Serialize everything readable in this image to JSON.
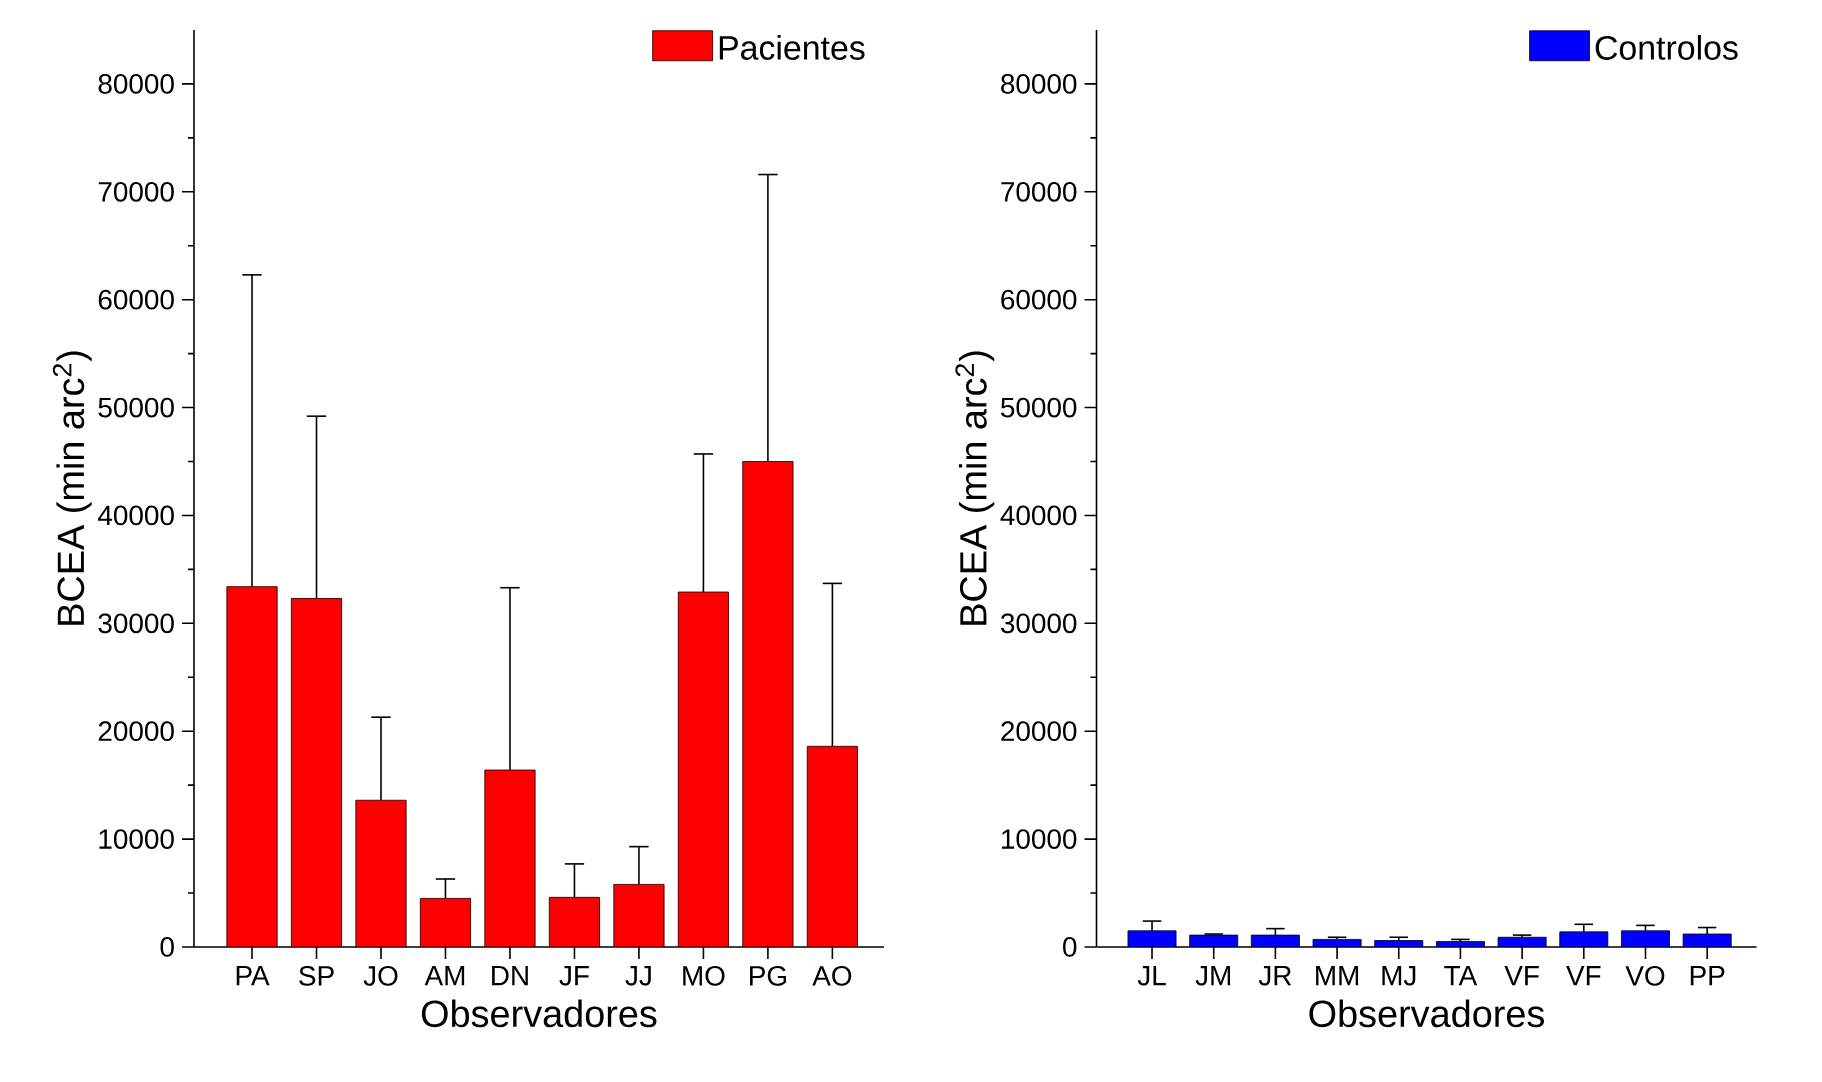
{
  "chart_data": [
    {
      "type": "bar",
      "xlabel": "Observadores",
      "ylabel": "BCEA (min arc$^{2}$)",
      "categories": [
        "PA",
        "SP",
        "JO",
        "AM",
        "DN",
        "JF",
        "JJ",
        "MO",
        "PG",
        "AO"
      ],
      "ylim": [
        0,
        85000
      ],
      "yticks": [
        0,
        10000,
        20000,
        30000,
        40000,
        50000,
        60000,
        70000,
        80000
      ],
      "legend": "top right",
      "series": [
        {
          "name": "Pacientes",
          "color": "#ff0000",
          "values": [
            33400,
            32300,
            13600,
            4500,
            16400,
            4600,
            5800,
            32900,
            45000,
            18600
          ],
          "errors": [
            [
              33400,
              62300
            ],
            [
              32300,
              49200
            ],
            [
              13600,
              21300
            ],
            [
              4500,
              6300
            ],
            [
              16400,
              33300
            ],
            [
              4600,
              7700
            ],
            [
              5800,
              9300
            ],
            [
              32900,
              45700
            ],
            [
              45000,
              71600
            ],
            [
              18600,
              33700
            ]
          ]
        }
      ]
    },
    {
      "type": "bar",
      "xlabel": "Observadores",
      "ylabel": "BCEA (min arc$^{2}$)",
      "categories": [
        "JL",
        "JM",
        "JR",
        "MM",
        "MJ",
        "TA",
        "VF",
        "VF",
        "VO",
        "PP"
      ],
      "ylim": [
        0,
        85000
      ],
      "yticks": [
        0,
        10000,
        20000,
        30000,
        40000,
        50000,
        60000,
        70000,
        80000
      ],
      "legend": "top right",
      "series": [
        {
          "name": "Controlos",
          "color": "#0000ff",
          "values": [
            1500,
            1100,
            1100,
            700,
            600,
            500,
            900,
            1400,
            1500,
            1200
          ],
          "errors": [
            [
              1500,
              2400
            ],
            [
              1100,
              1200
            ],
            [
              1100,
              1700
            ],
            [
              700,
              900
            ],
            [
              600,
              900
            ],
            [
              500,
              700
            ],
            [
              900,
              1100
            ],
            [
              1400,
              2100
            ],
            [
              1500,
              2000
            ],
            [
              1200,
              1800
            ]
          ]
        }
      ]
    }
  ]
}
